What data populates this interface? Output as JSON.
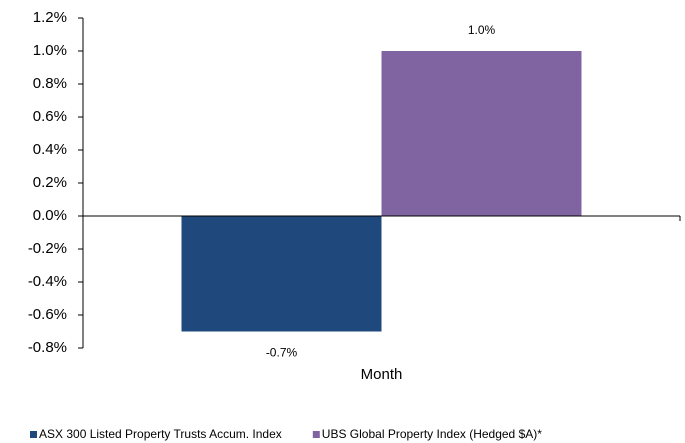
{
  "chart_data": {
    "type": "bar",
    "categories": [
      "Month"
    ],
    "series": [
      {
        "name": "ASX 300 Listed Property Trusts Accum. Index",
        "color": "#1f497d",
        "values": [
          -0.7
        ],
        "value_labels": [
          "-0.7%"
        ]
      },
      {
        "name": "UBS Global Property Index (Hedged $A)*",
        "color": "#8064a2",
        "values": [
          1.0
        ],
        "value_labels": [
          "1.0%"
        ]
      }
    ],
    "ylim": [
      -0.8,
      1.2
    ],
    "yticks": [
      {
        "value": -0.8,
        "label": "-0.8%"
      },
      {
        "value": -0.6,
        "label": "-0.6%"
      },
      {
        "value": -0.4,
        "label": "-0.4%"
      },
      {
        "value": -0.2,
        "label": "-0.2%"
      },
      {
        "value": 0,
        "label": "0.0%"
      },
      {
        "value": 0.2,
        "label": "0.2%"
      },
      {
        "value": 0.4,
        "label": "0.4%"
      },
      {
        "value": 0.6,
        "label": "0.6%"
      },
      {
        "value": 0.8,
        "label": "0.8%"
      },
      {
        "value": 1.0,
        "label": "1.0%"
      },
      {
        "value": 1.2,
        "label": "1.2%"
      }
    ],
    "grid": false,
    "legend": "bottom"
  }
}
